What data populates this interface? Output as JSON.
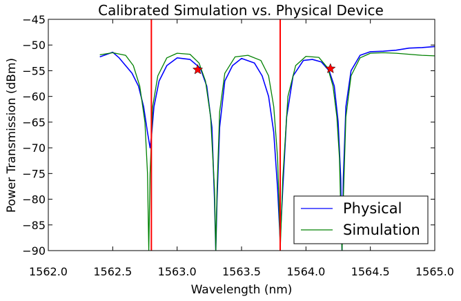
{
  "chart_data": {
    "type": "line",
    "title": "Calibrated Simulation vs. Physical Device",
    "xlabel": "Wavelength (nm)",
    "ylabel": "Power Transmission (dBm)",
    "xlim": [
      1562.0,
      1565.0
    ],
    "ylim": [
      -90,
      -45
    ],
    "xticks": [
      "1562.0",
      "1562.5",
      "1563.0",
      "1563.5",
      "1564.0",
      "1564.5",
      "1565.0"
    ],
    "xtick_values": [
      1562.0,
      1562.5,
      1563.0,
      1563.5,
      1564.0,
      1564.5,
      1565.0
    ],
    "yticks": [
      "−45",
      "−50",
      "−55",
      "−60",
      "−65",
      "−70",
      "−75",
      "−80",
      "−85",
      "−90"
    ],
    "ytick_values": [
      -45,
      -50,
      -55,
      -60,
      -65,
      -70,
      -75,
      -80,
      -85,
      -90
    ],
    "grid": false,
    "legend_position": "bottom-right",
    "series": [
      {
        "name": "Physical",
        "color": "#0000ff",
        "x": [
          1562.4,
          1562.5,
          1562.55,
          1562.6,
          1562.65,
          1562.7,
          1562.74,
          1562.77,
          1562.79,
          1562.8,
          1562.82,
          1562.86,
          1562.92,
          1563.0,
          1563.1,
          1563.18,
          1563.23,
          1563.27,
          1563.29,
          1563.3,
          1563.31,
          1563.33,
          1563.37,
          1563.43,
          1563.5,
          1563.6,
          1563.66,
          1563.71,
          1563.75,
          1563.78,
          1563.8,
          1563.82,
          1563.85,
          1563.9,
          1563.98,
          1564.05,
          1564.12,
          1564.18,
          1564.22,
          1564.25,
          1564.27,
          1564.28,
          1564.29,
          1564.31,
          1564.35,
          1564.42,
          1564.5,
          1564.6,
          1564.7,
          1564.8,
          1564.9,
          1565.0
        ],
        "y": [
          -52.3,
          -51.4,
          -52.5,
          -54.0,
          -55.5,
          -58.0,
          -62.0,
          -67.0,
          -70.0,
          -68.0,
          -62.0,
          -57.0,
          -54.0,
          -52.5,
          -52.8,
          -54.5,
          -58.0,
          -66.0,
          -80.0,
          -90.0,
          -80.0,
          -66.0,
          -57.0,
          -54.0,
          -52.6,
          -53.5,
          -56.0,
          -60.0,
          -67.0,
          -78.0,
          -88.0,
          -78.0,
          -64.0,
          -56.0,
          -53.0,
          -52.8,
          -53.3,
          -55.0,
          -58.0,
          -65.0,
          -76.0,
          -90.0,
          -76.0,
          -62.0,
          -55.0,
          -52.0,
          -51.3,
          -51.2,
          -51.0,
          -50.6,
          -50.5,
          -50.3
        ]
      },
      {
        "name": "Simulation",
        "color": "#008000",
        "x": [
          1562.4,
          1562.5,
          1562.6,
          1562.66,
          1562.71,
          1562.75,
          1562.77,
          1562.78,
          1562.79,
          1562.81,
          1562.85,
          1562.92,
          1563.0,
          1563.1,
          1563.17,
          1563.22,
          1563.26,
          1563.29,
          1563.3,
          1563.31,
          1563.33,
          1563.37,
          1563.45,
          1563.55,
          1563.65,
          1563.71,
          1563.75,
          1563.78,
          1563.79,
          1563.8,
          1563.82,
          1563.86,
          1563.92,
          1564.0,
          1564.1,
          1564.17,
          1564.21,
          1564.24,
          1564.26,
          1564.27,
          1564.28,
          1564.29,
          1564.31,
          1564.35,
          1564.42,
          1564.5,
          1564.6,
          1564.7,
          1564.8,
          1564.9,
          1565.0
        ],
        "y": [
          -51.9,
          -51.5,
          -52.0,
          -54.0,
          -58.0,
          -65.0,
          -75.0,
          -90.0,
          -75.0,
          -62.0,
          -56.0,
          -52.5,
          -51.6,
          -51.8,
          -53.5,
          -57.0,
          -64.0,
          -78.0,
          -90.0,
          -78.0,
          -63.0,
          -55.5,
          -52.3,
          -52.0,
          -53.0,
          -56.0,
          -62.0,
          -72.0,
          -80.0,
          -90.0,
          -76.0,
          -60.0,
          -54.0,
          -52.2,
          -52.4,
          -54.5,
          -58.0,
          -64.0,
          -72.0,
          -82.0,
          -90.0,
          -80.0,
          -64.0,
          -56.0,
          -52.5,
          -51.6,
          -51.5,
          -51.6,
          -51.8,
          -52.0,
          -52.1
        ]
      }
    ],
    "vertical_lines": {
      "color": "#ff0000",
      "x": [
        1562.8,
        1563.8
      ]
    },
    "star_markers": {
      "color": "#ff0000",
      "points": [
        {
          "x": 1563.16,
          "y": -54.8
        },
        {
          "x": 1564.19,
          "y": -54.6
        }
      ]
    }
  }
}
